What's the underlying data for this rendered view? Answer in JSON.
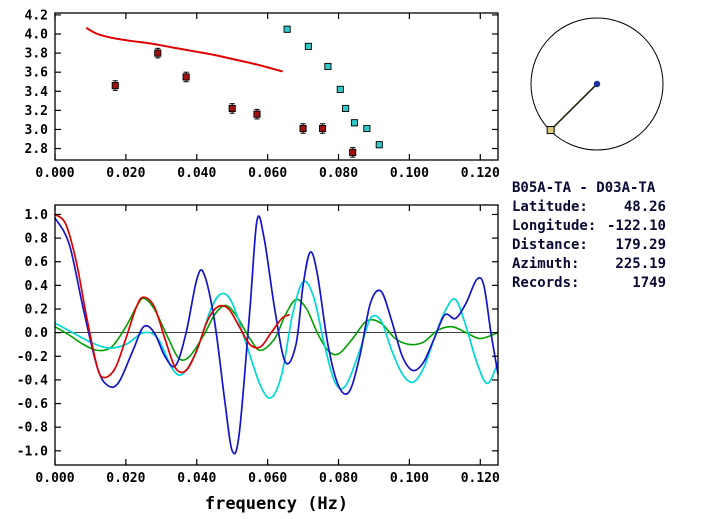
{
  "info": {
    "station_pair": "B05A-TA - D03A-TA",
    "rows": [
      {
        "label": "Latitude:",
        "value": "48.26"
      },
      {
        "label": "Longitude:",
        "value": "-122.10"
      },
      {
        "label": "Distance:",
        "value": "179.29"
      },
      {
        "label": "Azimuth:",
        "value": "225.19"
      },
      {
        "label": "Records:",
        "value": "1749"
      }
    ]
  },
  "dial": {
    "azimuth_deg": 225.19,
    "line_color": "#2a2a10",
    "marker_color": "#d8c87a",
    "center_color": "#1c2f9c"
  },
  "chart_data": [
    {
      "id": "dispersion",
      "type": "scatter",
      "title": "",
      "xlabel": "",
      "ylabel": "",
      "xlim": [
        0,
        0.125
      ],
      "ylim": [
        2.68,
        4.22
      ],
      "grid": false,
      "legend": "none",
      "xticks": [
        0,
        0.02,
        0.04,
        0.06,
        0.08,
        0.1,
        0.12
      ],
      "xtick_labels": [
        "0.000",
        "0.020",
        "0.040",
        "0.060",
        "0.080",
        "0.100",
        "0.120"
      ],
      "yticks": [
        2.8,
        3.0,
        3.2,
        3.4,
        3.6,
        3.8,
        4.0,
        4.2
      ],
      "ytick_labels": [
        "2.8",
        "3.0",
        "3.2",
        "3.4",
        "3.6",
        "3.8",
        "4.0",
        "4.2"
      ],
      "zero_line": false,
      "series": [
        {
          "name": "predicted-dispersion-curve",
          "style": "line",
          "color": "#e00000",
          "width": 2,
          "points": [
            [
              0.009,
              4.06
            ],
            [
              0.012,
              4.0
            ],
            [
              0.016,
              3.96
            ],
            [
              0.021,
              3.93
            ],
            [
              0.027,
              3.9
            ],
            [
              0.033,
              3.86
            ],
            [
              0.039,
              3.82
            ],
            [
              0.045,
              3.78
            ],
            [
              0.051,
              3.73
            ],
            [
              0.057,
              3.68
            ],
            [
              0.061,
              3.64
            ],
            [
              0.064,
              3.61
            ]
          ]
        },
        {
          "name": "measured-dispersion-dark-red",
          "style": "scatter",
          "color": "#a01212",
          "err": 0.05,
          "points": [
            [
              0.017,
              3.46
            ],
            [
              0.029,
              3.8
            ],
            [
              0.037,
              3.55
            ],
            [
              0.05,
              3.22
            ],
            [
              0.057,
              3.16
            ],
            [
              0.07,
              3.01
            ],
            [
              0.0755,
              3.01
            ],
            [
              0.084,
              2.76
            ]
          ]
        },
        {
          "name": "measured-dispersion-cyan",
          "style": "scatter",
          "color": "#30c8c8",
          "err": 0.03,
          "points": [
            [
              0.0655,
              4.05
            ],
            [
              0.0715,
              3.87
            ],
            [
              0.077,
              3.66
            ],
            [
              0.0805,
              3.42
            ],
            [
              0.082,
              3.22
            ],
            [
              0.0845,
              3.07
            ],
            [
              0.088,
              3.01
            ],
            [
              0.0915,
              2.84
            ]
          ]
        }
      ]
    },
    {
      "id": "waveforms",
      "type": "line",
      "title": "",
      "xlabel": "frequency (Hz)",
      "ylabel": "",
      "xlim": [
        0,
        0.125
      ],
      "ylim": [
        -1.12,
        1.08
      ],
      "grid": false,
      "legend": "none",
      "xticks": [
        0,
        0.02,
        0.04,
        0.06,
        0.08,
        0.1,
        0.12
      ],
      "xtick_labels": [
        "0.000",
        "0.020",
        "0.040",
        "0.060",
        "0.080",
        "0.100",
        "0.120"
      ],
      "yticks": [
        -1.0,
        -0.8,
        -0.6,
        -0.4,
        -0.2,
        0.0,
        0.2,
        0.4,
        0.6,
        0.8,
        1.0
      ],
      "ytick_labels": [
        "-1.0",
        "-0.8",
        "-0.6",
        "-0.4",
        "-0.2",
        "0.0",
        "0.2",
        "0.4",
        "0.6",
        "0.8",
        "1.0"
      ],
      "zero_line": true,
      "series": [
        {
          "name": "green-waveform",
          "style": "line",
          "color": "#00a000",
          "width": 1.6,
          "points": [
            [
              0,
              0.05
            ],
            [
              0.004,
              -0.02
            ],
            [
              0.008,
              -0.1
            ],
            [
              0.012,
              -0.15
            ],
            [
              0.016,
              -0.12
            ],
            [
              0.02,
              0.05
            ],
            [
              0.023,
              0.22
            ],
            [
              0.025,
              0.29
            ],
            [
              0.028,
              0.2
            ],
            [
              0.032,
              -0.05
            ],
            [
              0.035,
              -0.22
            ],
            [
              0.038,
              -0.2
            ],
            [
              0.042,
              -0.02
            ],
            [
              0.045,
              0.15
            ],
            [
              0.048,
              0.23
            ],
            [
              0.051,
              0.15
            ],
            [
              0.055,
              -0.05
            ],
            [
              0.058,
              -0.15
            ],
            [
              0.062,
              -0.05
            ],
            [
              0.065,
              0.15
            ],
            [
              0.068,
              0.28
            ],
            [
              0.071,
              0.2
            ],
            [
              0.074,
              0.0
            ],
            [
              0.077,
              -0.15
            ],
            [
              0.08,
              -0.18
            ],
            [
              0.084,
              -0.05
            ],
            [
              0.088,
              0.1
            ],
            [
              0.092,
              0.08
            ],
            [
              0.096,
              -0.05
            ],
            [
              0.1,
              -0.1
            ],
            [
              0.104,
              -0.08
            ],
            [
              0.108,
              0.02
            ],
            [
              0.112,
              0.05
            ],
            [
              0.116,
              0.0
            ],
            [
              0.12,
              -0.05
            ],
            [
              0.125,
              0.0
            ]
          ]
        },
        {
          "name": "cyan-waveform",
          "style": "line",
          "color": "#00d8d8",
          "width": 1.7,
          "points": [
            [
              0,
              0.08
            ],
            [
              0.005,
              0.0
            ],
            [
              0.01,
              -0.08
            ],
            [
              0.015,
              -0.13
            ],
            [
              0.02,
              -0.1
            ],
            [
              0.025,
              0.0
            ],
            [
              0.029,
              -0.05
            ],
            [
              0.033,
              -0.3
            ],
            [
              0.036,
              -0.35
            ],
            [
              0.04,
              -0.15
            ],
            [
              0.044,
              0.2
            ],
            [
              0.047,
              0.33
            ],
            [
              0.05,
              0.25
            ],
            [
              0.054,
              -0.1
            ],
            [
              0.058,
              -0.45
            ],
            [
              0.061,
              -0.55
            ],
            [
              0.064,
              -0.35
            ],
            [
              0.067,
              0.15
            ],
            [
              0.07,
              0.43
            ],
            [
              0.073,
              0.3
            ],
            [
              0.076,
              -0.1
            ],
            [
              0.079,
              -0.42
            ],
            [
              0.082,
              -0.45
            ],
            [
              0.086,
              -0.15
            ],
            [
              0.089,
              0.12
            ],
            [
              0.092,
              0.1
            ],
            [
              0.095,
              -0.15
            ],
            [
              0.098,
              -0.35
            ],
            [
              0.101,
              -0.42
            ],
            [
              0.104,
              -0.3
            ],
            [
              0.107,
              -0.05
            ],
            [
              0.11,
              0.18
            ],
            [
              0.113,
              0.28
            ],
            [
              0.116,
              0.05
            ],
            [
              0.119,
              -0.25
            ],
            [
              0.122,
              -0.43
            ],
            [
              0.125,
              -0.25
            ]
          ]
        },
        {
          "name": "blue-waveform",
          "style": "line",
          "color": "#1414cc",
          "width": 1.7,
          "points": [
            [
              0,
              0.97
            ],
            [
              0.004,
              0.75
            ],
            [
              0.008,
              0.2
            ],
            [
              0.012,
              -0.3
            ],
            [
              0.015,
              -0.45
            ],
            [
              0.018,
              -0.42
            ],
            [
              0.022,
              -0.15
            ],
            [
              0.025,
              0.05
            ],
            [
              0.028,
              0.0
            ],
            [
              0.031,
              -0.2
            ],
            [
              0.034,
              -0.28
            ],
            [
              0.037,
              0.0
            ],
            [
              0.04,
              0.45
            ],
            [
              0.042,
              0.5
            ],
            [
              0.045,
              0.1
            ],
            [
              0.048,
              -0.6
            ],
            [
              0.05,
              -1.0
            ],
            [
              0.052,
              -0.85
            ],
            [
              0.055,
              0.2
            ],
            [
              0.057,
              0.95
            ],
            [
              0.059,
              0.8
            ],
            [
              0.062,
              0.2
            ],
            [
              0.065,
              -0.25
            ],
            [
              0.068,
              -0.1
            ],
            [
              0.07,
              0.4
            ],
            [
              0.072,
              0.68
            ],
            [
              0.074,
              0.5
            ],
            [
              0.077,
              -0.1
            ],
            [
              0.08,
              -0.45
            ],
            [
              0.083,
              -0.5
            ],
            [
              0.086,
              -0.2
            ],
            [
              0.089,
              0.25
            ],
            [
              0.092,
              0.35
            ],
            [
              0.095,
              0.1
            ],
            [
              0.098,
              -0.2
            ],
            [
              0.101,
              -0.32
            ],
            [
              0.104,
              -0.25
            ],
            [
              0.107,
              -0.05
            ],
            [
              0.11,
              0.15
            ],
            [
              0.113,
              0.12
            ],
            [
              0.116,
              0.25
            ],
            [
              0.119,
              0.45
            ],
            [
              0.121,
              0.4
            ],
            [
              0.123,
              0.0
            ],
            [
              0.125,
              -0.35
            ]
          ]
        },
        {
          "name": "red-waveform",
          "style": "line",
          "color": "#e00000",
          "width": 1.7,
          "points": [
            [
              0,
              1.0
            ],
            [
              0.003,
              0.92
            ],
            [
              0.006,
              0.6
            ],
            [
              0.009,
              0.12
            ],
            [
              0.012,
              -0.3
            ],
            [
              0.014,
              -0.38
            ],
            [
              0.017,
              -0.3
            ],
            [
              0.02,
              -0.05
            ],
            [
              0.023,
              0.22
            ],
            [
              0.025,
              0.3
            ],
            [
              0.028,
              0.22
            ],
            [
              0.031,
              -0.05
            ],
            [
              0.034,
              -0.3
            ],
            [
              0.037,
              -0.32
            ],
            [
              0.04,
              -0.15
            ],
            [
              0.043,
              0.1
            ],
            [
              0.046,
              0.22
            ],
            [
              0.049,
              0.2
            ],
            [
              0.052,
              0.05
            ],
            [
              0.055,
              -0.1
            ],
            [
              0.058,
              -0.12
            ],
            [
              0.061,
              0.0
            ],
            [
              0.064,
              0.12
            ],
            [
              0.066,
              0.15
            ]
          ]
        }
      ]
    }
  ]
}
